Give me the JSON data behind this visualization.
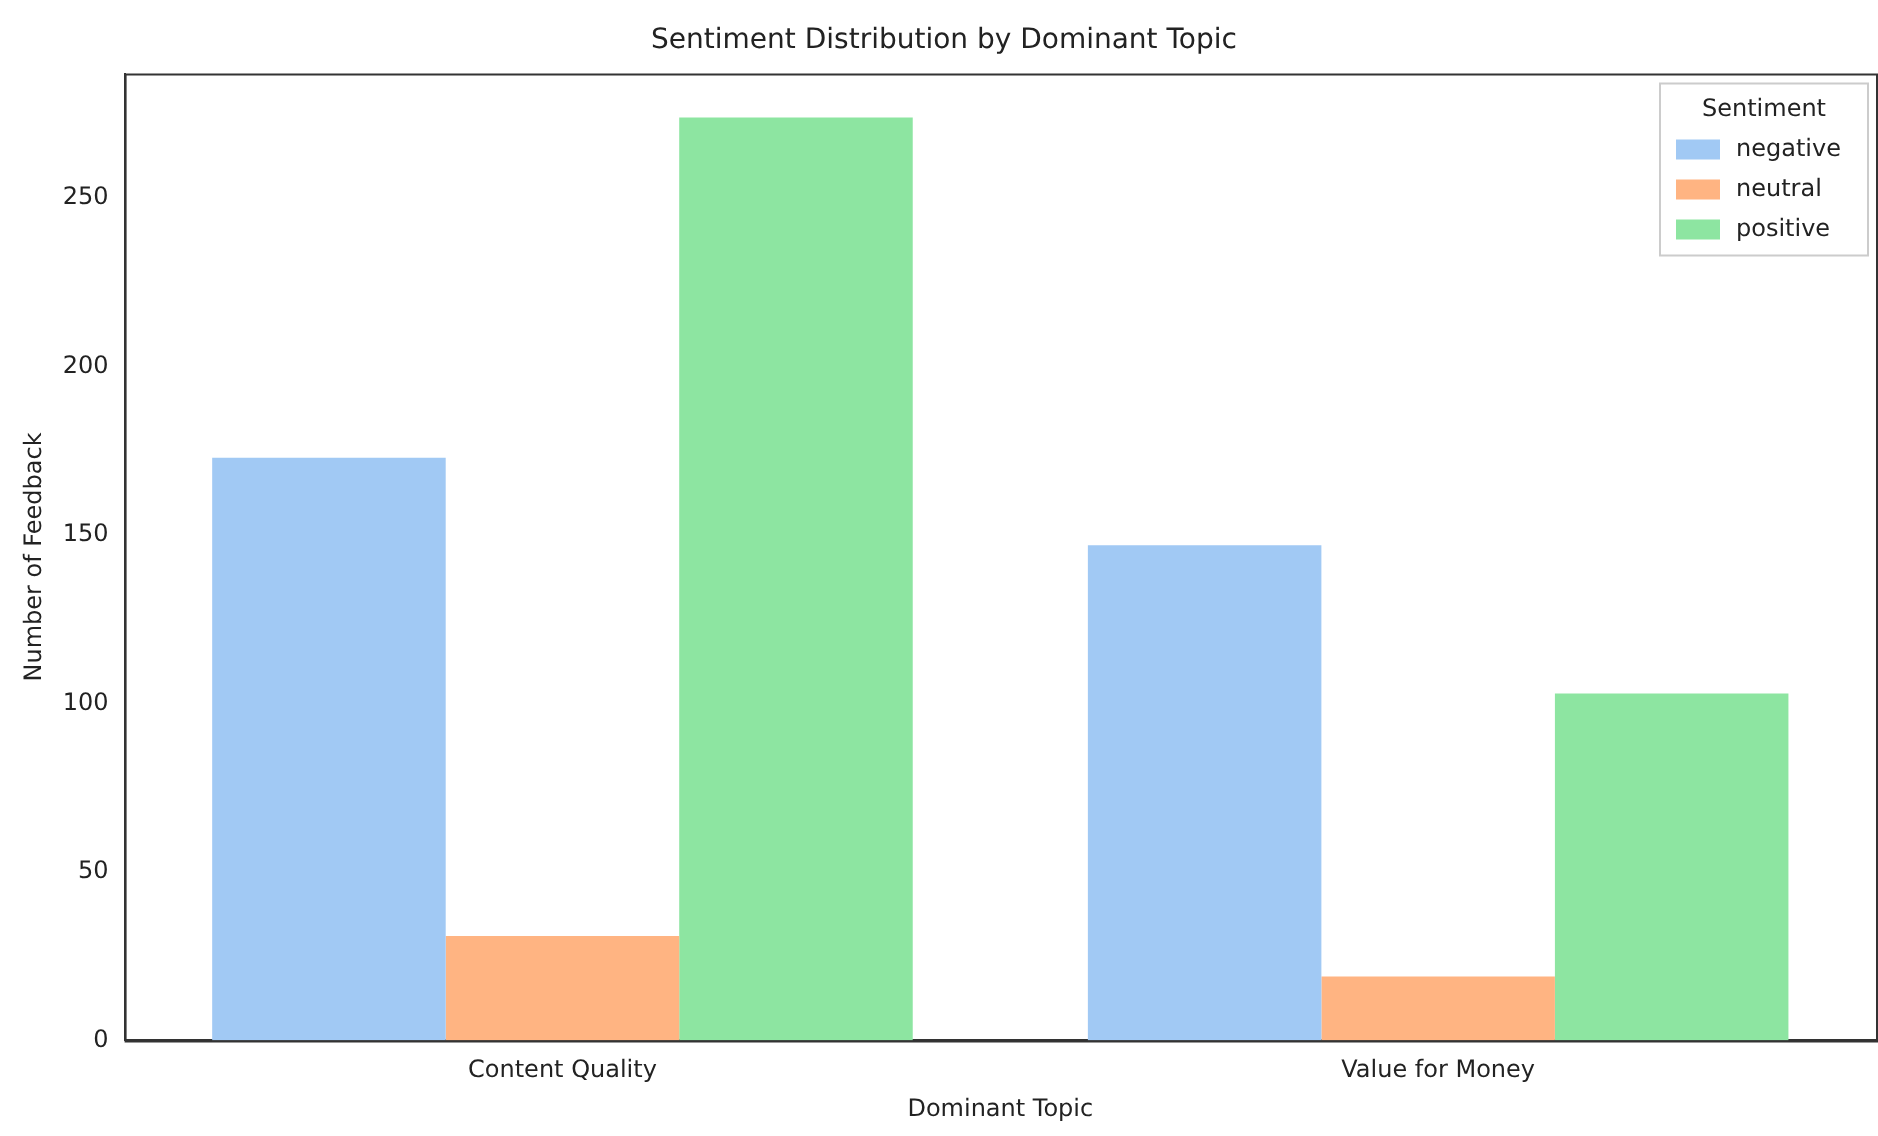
{
  "chart_data": {
    "type": "bar",
    "title": "Sentiment Distribution by Dominant Topic",
    "xlabel": "Dominant Topic",
    "ylabel": "Number of Feedback",
    "legend_title": "Sentiment",
    "categories": [
      "Content Quality",
      "Value for Money"
    ],
    "series": [
      {
        "name": "negative",
        "color": "#a1c9f4",
        "values": [
          173,
          147
        ]
      },
      {
        "name": "neutral",
        "color": "#ffb482",
        "values": [
          31,
          19
        ]
      },
      {
        "name": "positive",
        "color": "#8de5a1",
        "values": [
          274,
          103
        ]
      }
    ],
    "ylim": [
      0,
      287
    ],
    "yticks": [
      0,
      50,
      100,
      150,
      200,
      250
    ],
    "grid": false,
    "legend": "top right"
  }
}
